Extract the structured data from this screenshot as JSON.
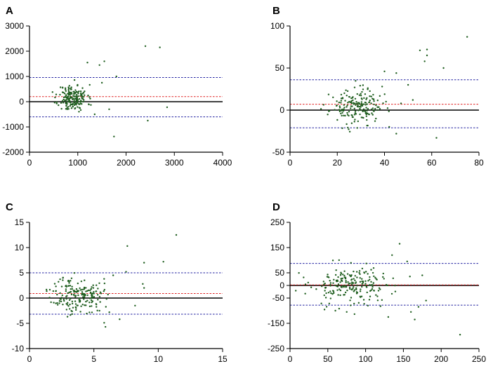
{
  "chart_data": [
    {
      "type": "scatter",
      "panel_label": "A",
      "xlim": [
        0,
        4000
      ],
      "ylim": [
        -2000,
        3000
      ],
      "xticks": [
        0,
        1000,
        2000,
        3000,
        4000
      ],
      "yticks": [
        -2000,
        -1000,
        0,
        1000,
        2000,
        3000
      ],
      "xtick_labels": [
        "0",
        "1000",
        "2000",
        "3000",
        "4000"
      ],
      "ytick_labels": [
        "-2000",
        "-1000",
        "0",
        "1000",
        "2000",
        "3000"
      ],
      "mean_line": 200,
      "upper_loa": 960,
      "lower_loa": -600,
      "cluster": {
        "cx": 900,
        "sx": 150,
        "cy": 150,
        "sy": 260,
        "n": 190,
        "seed": 11
      },
      "outliers": [
        [
          2400,
          2200
        ],
        [
          2700,
          2150
        ],
        [
          1750,
          -1380
        ],
        [
          2850,
          -220
        ],
        [
          2450,
          -750
        ],
        [
          1550,
          1600
        ],
        [
          1450,
          1450
        ],
        [
          1200,
          1550
        ],
        [
          1800,
          1000
        ],
        [
          1500,
          750
        ],
        [
          1350,
          -500
        ],
        [
          1650,
          -300
        ]
      ]
    },
    {
      "type": "scatter",
      "panel_label": "B",
      "xlim": [
        0,
        80
      ],
      "ylim": [
        -50,
        100
      ],
      "xticks": [
        0,
        20,
        40,
        60,
        80
      ],
      "yticks": [
        -50,
        0,
        50,
        100
      ],
      "xtick_labels": [
        "0",
        "20",
        "40",
        "60",
        "80"
      ],
      "ytick_labels": [
        "-50",
        "0",
        "50",
        "100"
      ],
      "mean_line": 7,
      "upper_loa": 36,
      "lower_loa": -21,
      "cluster": {
        "cx": 28,
        "sx": 5.5,
        "cy": 4,
        "sy": 10,
        "n": 190,
        "seed": 23
      },
      "outliers": [
        [
          75,
          87
        ],
        [
          58,
          72
        ],
        [
          55,
          71
        ],
        [
          58,
          65
        ],
        [
          57,
          58
        ],
        [
          65,
          50
        ],
        [
          40,
          46
        ],
        [
          62,
          -33
        ],
        [
          45,
          -28
        ],
        [
          45,
          44
        ],
        [
          50,
          30
        ],
        [
          52,
          12
        ],
        [
          42,
          -20
        ],
        [
          47,
          8
        ],
        [
          39,
          28
        ]
      ]
    },
    {
      "type": "scatter",
      "panel_label": "C",
      "xlim": [
        0,
        15
      ],
      "ylim": [
        -10,
        15
      ],
      "xticks": [
        0,
        5,
        10,
        15
      ],
      "yticks": [
        -10,
        -5,
        0,
        5,
        10,
        15
      ],
      "xtick_labels": [
        "0",
        "5",
        "10",
        "15"
      ],
      "ytick_labels": [
        "-10",
        "-5",
        "0",
        "5",
        "10",
        "15"
      ],
      "mean_line": 0.9,
      "upper_loa": 5,
      "lower_loa": -3.2,
      "cluster": {
        "cx": 3.7,
        "sx": 1.0,
        "cy": 0.6,
        "sy": 1.8,
        "n": 190,
        "seed": 37
      },
      "outliers": [
        [
          11.4,
          12.5
        ],
        [
          7.6,
          10.3
        ],
        [
          10.4,
          7.2
        ],
        [
          8.9,
          7.0
        ],
        [
          7.5,
          5.2
        ],
        [
          8.8,
          2.8
        ],
        [
          8.9,
          2.0
        ],
        [
          5.9,
          -5.7
        ],
        [
          5.8,
          -4.9
        ],
        [
          7.0,
          -4.2
        ],
        [
          8.2,
          -1.5
        ],
        [
          6.5,
          4.5
        ],
        [
          6.2,
          -2.8
        ]
      ]
    },
    {
      "type": "scatter",
      "panel_label": "D",
      "xlim": [
        0,
        250
      ],
      "ylim": [
        -250,
        250
      ],
      "xticks": [
        0,
        50,
        100,
        150,
        200,
        250
      ],
      "yticks": [
        -250,
        -150,
        -50,
        0,
        50,
        150,
        250
      ],
      "xtick_labels": [
        "0",
        "50",
        "100",
        "150",
        "200",
        "250"
      ],
      "ytick_labels": [
        "-250",
        "-150",
        "-50",
        "0",
        "50",
        "150",
        "250"
      ],
      "mean_line": 2,
      "upper_loa": 87,
      "lower_loa": -78,
      "cluster": {
        "cx": 82,
        "sx": 28,
        "cy": 0,
        "sy": 40,
        "n": 210,
        "seed": 53
      },
      "outliers": [
        [
          225,
          -195
        ],
        [
          145,
          165
        ],
        [
          160,
          -105
        ],
        [
          165,
          -135
        ],
        [
          180,
          -60
        ],
        [
          170,
          -85
        ],
        [
          135,
          120
        ],
        [
          155,
          95
        ],
        [
          130,
          -125
        ],
        [
          175,
          40
        ],
        [
          75,
          -105
        ],
        [
          60,
          -100
        ]
      ]
    }
  ]
}
